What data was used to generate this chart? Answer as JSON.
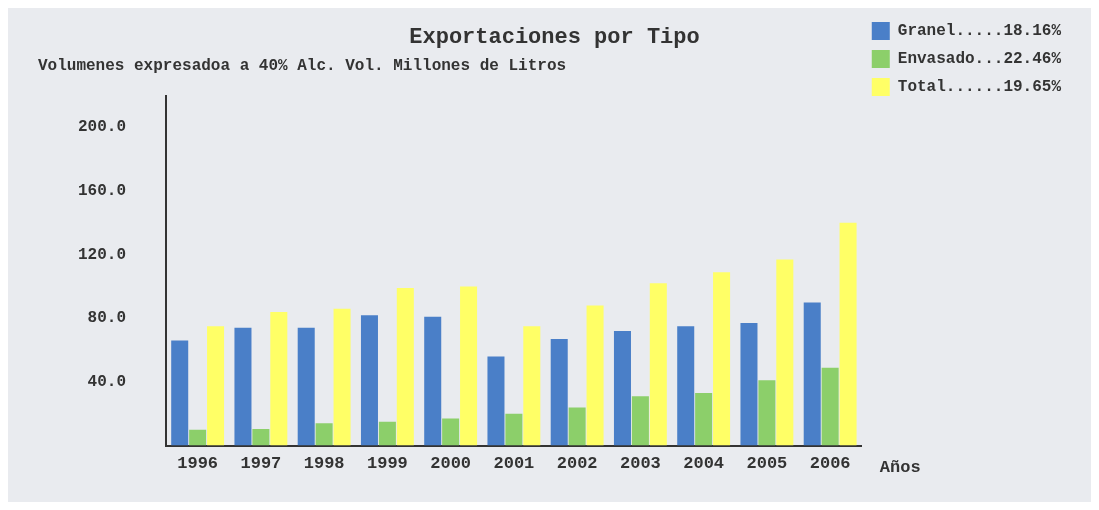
{
  "chart_data": {
    "type": "bar",
    "title": "Exportaciones por Tipo",
    "subtitle": "Volumenes expresadoa a 40% Alc. Vol. Millones de Litros",
    "xlabel": "Años",
    "categories": [
      "1996",
      "1997",
      "1998",
      "1999",
      "2000",
      "2001",
      "2002",
      "2003",
      "2004",
      "2005",
      "2006"
    ],
    "series": [
      {
        "name": "Granel.....18.16%",
        "color": "#4a7fc8",
        "values": [
          66,
          74,
          74,
          82,
          81,
          56,
          67,
          72,
          75,
          77,
          90
        ]
      },
      {
        "name": "Envasado...22.46%",
        "color": "#8ccf6a",
        "values": [
          10,
          10.5,
          14,
          15,
          17,
          20,
          24,
          31,
          33,
          41,
          49
        ]
      },
      {
        "name": "Total......19.65%",
        "color": "#ffff66",
        "values": [
          75,
          84,
          86,
          99,
          100,
          75,
          88,
          102,
          109,
          117,
          140
        ]
      }
    ],
    "ylim": [
      0,
      220
    ],
    "yticks": [
      {
        "value": 40,
        "label": "40.0"
      },
      {
        "value": 80,
        "label": "80.0"
      },
      {
        "value": 120,
        "label": "120.0"
      },
      {
        "value": 160,
        "label": "160.0"
      },
      {
        "value": 200,
        "label": "200.0"
      }
    ],
    "grid": false,
    "legend": "right"
  }
}
